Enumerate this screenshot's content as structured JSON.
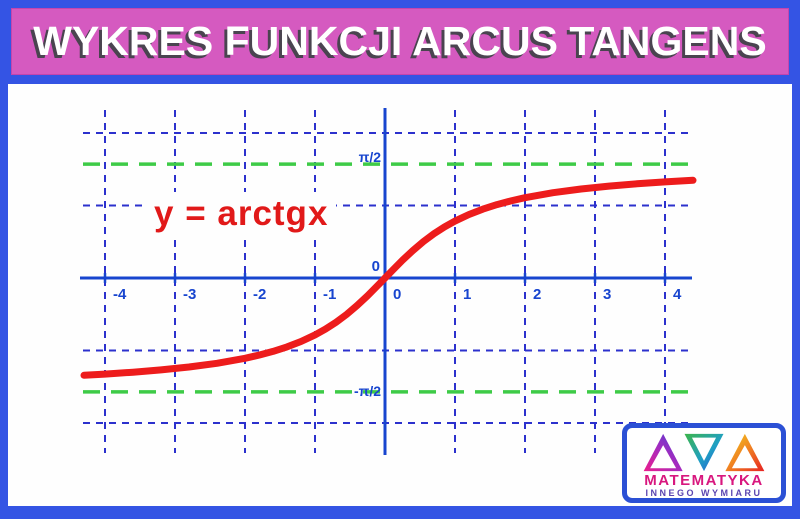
{
  "header": {
    "title": "WYKRES FUNKCJI ARCUS TANGENS"
  },
  "colors": {
    "frame_blue": "#3454e4",
    "banner_pink": "#d55ac0",
    "grid_blue": "#2c31cd",
    "axis_blue": "#1845cf",
    "asymptote_green": "#3ecb47",
    "curve_red": "#ed1c1c",
    "label_red": "#e11919"
  },
  "chart_data": {
    "type": "line",
    "title": "WYKRES FUNKCJI ARCUS TANGENS",
    "function_label": "y = arctgx",
    "xlabel": "",
    "ylabel": "",
    "xlim": [
      -4.35,
      4.4
    ],
    "ylim": [
      -2.5,
      2.35
    ],
    "grid": true,
    "legend_position": "none",
    "x_gridlines": [
      -4,
      -3,
      -2,
      -1,
      1,
      2,
      3,
      4
    ],
    "y_gridlines": [
      -2,
      -1,
      1,
      2
    ],
    "xtick_values": [
      -4,
      -3,
      -2,
      -1,
      0,
      1,
      2,
      3,
      4
    ],
    "xtick_labels": [
      "-4",
      "-3",
      "-2",
      "-1",
      "0",
      "1",
      "2",
      "3",
      "4"
    ],
    "origin_label_above": "0",
    "asymptotes": [
      {
        "label": "π/2",
        "y": 1.5708
      },
      {
        "label": "-π/2",
        "y": -1.5708
      }
    ],
    "series": [
      {
        "name": "y = arctg(x)",
        "points": [
          [
            -4.3,
            -1.3422
          ],
          [
            -4,
            -1.3258
          ],
          [
            -3.6,
            -1.2999
          ],
          [
            -3.2,
            -1.2679
          ],
          [
            -2.8,
            -1.2278
          ],
          [
            -2.4,
            -1.176
          ],
          [
            -2,
            -1.1071
          ],
          [
            -1.8,
            -1.0637
          ],
          [
            -1.6,
            -1.0122
          ],
          [
            -1.4,
            -0.9505
          ],
          [
            -1.2,
            -0.8761
          ],
          [
            -1,
            -0.7854
          ],
          [
            -0.85,
            -0.7045
          ],
          [
            -0.7,
            -0.6107
          ],
          [
            -0.55,
            -0.5028
          ],
          [
            -0.4,
            -0.3805
          ],
          [
            -0.25,
            -0.245
          ],
          [
            -0.1,
            -0.0997
          ],
          [
            0,
            0
          ],
          [
            0.1,
            0.0997
          ],
          [
            0.25,
            0.245
          ],
          [
            0.4,
            0.3805
          ],
          [
            0.55,
            0.5028
          ],
          [
            0.7,
            0.6107
          ],
          [
            0.85,
            0.7045
          ],
          [
            1,
            0.7854
          ],
          [
            1.2,
            0.8761
          ],
          [
            1.4,
            0.9505
          ],
          [
            1.6,
            1.0122
          ],
          [
            1.8,
            1.0637
          ],
          [
            2,
            1.1071
          ],
          [
            2.4,
            1.176
          ],
          [
            2.8,
            1.2278
          ],
          [
            3.2,
            1.2679
          ],
          [
            3.6,
            1.2999
          ],
          [
            4,
            1.3258
          ],
          [
            4.4,
            1.3473
          ]
        ]
      }
    ]
  },
  "logo": {
    "line1": "MATEMATYKA",
    "line2": "INNEGO WYMIARU",
    "icon": "three-triangles-logo"
  }
}
